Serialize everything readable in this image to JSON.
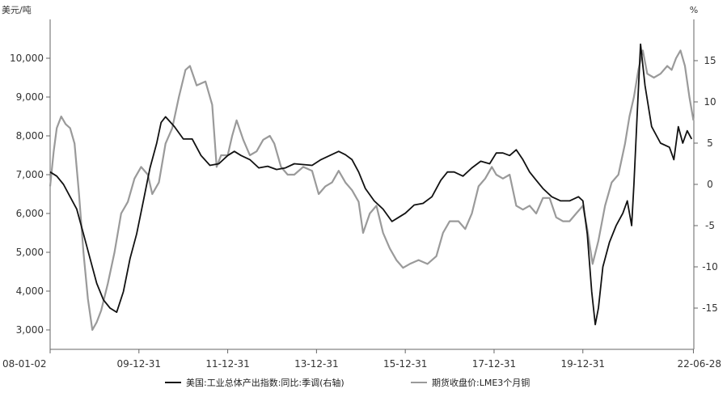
{
  "chart_data": {
    "type": "line",
    "left_axis_unit": "美元/吨",
    "right_axis_unit": "%",
    "x_tick_labels": [
      "08-01-02",
      "09-12-31",
      "11-12-31",
      "13-12-31",
      "15-12-31",
      "17-12-31",
      "19-12-31",
      "22-06-28"
    ],
    "left_axis": {
      "ylim": [
        2500,
        11000
      ],
      "ticks": [
        "3,000",
        "4,000",
        "5,000",
        "6,000",
        "7,000",
        "8,000",
        "9,000",
        "10,000"
      ]
    },
    "right_axis": {
      "ylim": [
        -20,
        20
      ],
      "ticks": [
        "-15",
        "-10",
        "-5",
        "0",
        "5",
        "10",
        "15"
      ]
    },
    "grid": false,
    "legend_position": "bottom",
    "series": [
      {
        "name": "美国:工业总体产出指数:同比:季调(右轴)",
        "axis": "right",
        "color": "#111111",
        "points": [
          [
            2008.0,
            1.5
          ],
          [
            2008.15,
            1.0
          ],
          [
            2008.3,
            0.0
          ],
          [
            2008.45,
            -1.5
          ],
          [
            2008.6,
            -3.0
          ],
          [
            2008.75,
            -6.0
          ],
          [
            2008.9,
            -9.0
          ],
          [
            2009.05,
            -12.0
          ],
          [
            2009.2,
            -14.0
          ],
          [
            2009.35,
            -15.0
          ],
          [
            2009.5,
            -15.5
          ],
          [
            2009.65,
            -13.0
          ],
          [
            2009.8,
            -9.0
          ],
          [
            2009.95,
            -6.0
          ],
          [
            2010.1,
            -2.0
          ],
          [
            2010.25,
            2.0
          ],
          [
            2010.4,
            5.0
          ],
          [
            2010.5,
            7.5
          ],
          [
            2010.6,
            8.2
          ],
          [
            2010.8,
            7.0
          ],
          [
            2011.0,
            5.5
          ],
          [
            2011.2,
            5.5
          ],
          [
            2011.4,
            3.5
          ],
          [
            2011.6,
            2.3
          ],
          [
            2011.8,
            2.5
          ],
          [
            2012.0,
            3.5
          ],
          [
            2012.15,
            4.0
          ],
          [
            2012.3,
            3.5
          ],
          [
            2012.5,
            3.0
          ],
          [
            2012.7,
            2.0
          ],
          [
            2012.9,
            2.2
          ],
          [
            2013.1,
            1.8
          ],
          [
            2013.3,
            2.0
          ],
          [
            2013.5,
            2.5
          ],
          [
            2013.7,
            2.4
          ],
          [
            2013.9,
            2.3
          ],
          [
            2014.1,
            3.0
          ],
          [
            2014.3,
            3.5
          ],
          [
            2014.5,
            4.0
          ],
          [
            2014.65,
            3.6
          ],
          [
            2014.8,
            3.0
          ],
          [
            2014.95,
            1.5
          ],
          [
            2015.1,
            -0.5
          ],
          [
            2015.3,
            -2.0
          ],
          [
            2015.5,
            -3.0
          ],
          [
            2015.7,
            -4.5
          ],
          [
            2015.85,
            -4.0
          ],
          [
            2016.0,
            -3.5
          ],
          [
            2016.2,
            -2.5
          ],
          [
            2016.4,
            -2.3
          ],
          [
            2016.6,
            -1.5
          ],
          [
            2016.8,
            0.5
          ],
          [
            2016.95,
            1.5
          ],
          [
            2017.1,
            1.5
          ],
          [
            2017.3,
            1.0
          ],
          [
            2017.5,
            2.0
          ],
          [
            2017.7,
            2.8
          ],
          [
            2017.9,
            2.5
          ],
          [
            2018.05,
            3.8
          ],
          [
            2018.2,
            3.8
          ],
          [
            2018.35,
            3.5
          ],
          [
            2018.5,
            4.2
          ],
          [
            2018.65,
            3.0
          ],
          [
            2018.8,
            1.5
          ],
          [
            2018.95,
            0.5
          ],
          [
            2019.1,
            -0.5
          ],
          [
            2019.3,
            -1.5
          ],
          [
            2019.5,
            -2.0
          ],
          [
            2019.7,
            -2.0
          ],
          [
            2019.9,
            -1.5
          ],
          [
            2020.0,
            -2.0
          ],
          [
            2020.1,
            -6.0
          ],
          [
            2020.2,
            -13.0
          ],
          [
            2020.28,
            -17.0
          ],
          [
            2020.35,
            -15.0
          ],
          [
            2020.45,
            -10.0
          ],
          [
            2020.6,
            -7.0
          ],
          [
            2020.75,
            -5.0
          ],
          [
            2020.9,
            -3.5
          ],
          [
            2021.0,
            -2.0
          ],
          [
            2021.1,
            -5.0
          ],
          [
            2021.15,
            0.0
          ],
          [
            2021.22,
            8.0
          ],
          [
            2021.3,
            17.0
          ],
          [
            2021.4,
            12.0
          ],
          [
            2021.55,
            7.0
          ],
          [
            2021.75,
            5.0
          ],
          [
            2021.95,
            4.5
          ],
          [
            2022.05,
            3.0
          ],
          [
            2022.15,
            7.0
          ],
          [
            2022.25,
            5.0
          ],
          [
            2022.35,
            6.5
          ],
          [
            2022.45,
            5.5
          ]
        ]
      },
      {
        "name": "期货收盘价:LME3个月铜",
        "axis": "left",
        "color": "#9a9a9a",
        "points": [
          [
            2008.0,
            6700
          ],
          [
            2008.08,
            7600
          ],
          [
            2008.15,
            8200
          ],
          [
            2008.25,
            8500
          ],
          [
            2008.35,
            8300
          ],
          [
            2008.45,
            8200
          ],
          [
            2008.55,
            7800
          ],
          [
            2008.65,
            6500
          ],
          [
            2008.75,
            5000
          ],
          [
            2008.85,
            3800
          ],
          [
            2008.95,
            3000
          ],
          [
            2009.05,
            3200
          ],
          [
            2009.15,
            3500
          ],
          [
            2009.3,
            4200
          ],
          [
            2009.45,
            5000
          ],
          [
            2009.6,
            6000
          ],
          [
            2009.75,
            6300
          ],
          [
            2009.9,
            6900
          ],
          [
            2010.05,
            7200
          ],
          [
            2010.2,
            7000
          ],
          [
            2010.3,
            6500
          ],
          [
            2010.45,
            6800
          ],
          [
            2010.6,
            7800
          ],
          [
            2010.75,
            8200
          ],
          [
            2010.9,
            9000
          ],
          [
            2011.05,
            9700
          ],
          [
            2011.15,
            9800
          ],
          [
            2011.3,
            9300
          ],
          [
            2011.5,
            9400
          ],
          [
            2011.65,
            8800
          ],
          [
            2011.75,
            7200
          ],
          [
            2011.85,
            7500
          ],
          [
            2012.0,
            7500
          ],
          [
            2012.1,
            8000
          ],
          [
            2012.2,
            8400
          ],
          [
            2012.35,
            7900
          ],
          [
            2012.5,
            7500
          ],
          [
            2012.65,
            7600
          ],
          [
            2012.8,
            7900
          ],
          [
            2012.95,
            8000
          ],
          [
            2013.05,
            7800
          ],
          [
            2013.2,
            7200
          ],
          [
            2013.35,
            7000
          ],
          [
            2013.5,
            7000
          ],
          [
            2013.7,
            7200
          ],
          [
            2013.9,
            7100
          ],
          [
            2014.05,
            6500
          ],
          [
            2014.2,
            6700
          ],
          [
            2014.35,
            6800
          ],
          [
            2014.5,
            7100
          ],
          [
            2014.65,
            6800
          ],
          [
            2014.8,
            6600
          ],
          [
            2014.95,
            6300
          ],
          [
            2015.05,
            5500
          ],
          [
            2015.2,
            6000
          ],
          [
            2015.35,
            6200
          ],
          [
            2015.5,
            5500
          ],
          [
            2015.65,
            5100
          ],
          [
            2015.8,
            4800
          ],
          [
            2015.95,
            4600
          ],
          [
            2016.1,
            4700
          ],
          [
            2016.3,
            4800
          ],
          [
            2016.5,
            4700
          ],
          [
            2016.7,
            4900
          ],
          [
            2016.85,
            5500
          ],
          [
            2017.0,
            5800
          ],
          [
            2017.2,
            5800
          ],
          [
            2017.35,
            5600
          ],
          [
            2017.5,
            6000
          ],
          [
            2017.65,
            6700
          ],
          [
            2017.8,
            6900
          ],
          [
            2017.95,
            7200
          ],
          [
            2018.05,
            7000
          ],
          [
            2018.2,
            6900
          ],
          [
            2018.35,
            7000
          ],
          [
            2018.5,
            6200
          ],
          [
            2018.65,
            6100
          ],
          [
            2018.8,
            6200
          ],
          [
            2018.95,
            6000
          ],
          [
            2019.1,
            6400
          ],
          [
            2019.25,
            6400
          ],
          [
            2019.4,
            5900
          ],
          [
            2019.55,
            5800
          ],
          [
            2019.7,
            5800
          ],
          [
            2019.85,
            6000
          ],
          [
            2020.0,
            6200
          ],
          [
            2020.1,
            5600
          ],
          [
            2020.22,
            4700
          ],
          [
            2020.35,
            5300
          ],
          [
            2020.5,
            6200
          ],
          [
            2020.65,
            6800
          ],
          [
            2020.8,
            7000
          ],
          [
            2020.95,
            7800
          ],
          [
            2021.05,
            8500
          ],
          [
            2021.15,
            9000
          ],
          [
            2021.25,
            9700
          ],
          [
            2021.35,
            10200
          ],
          [
            2021.45,
            9600
          ],
          [
            2021.6,
            9500
          ],
          [
            2021.75,
            9600
          ],
          [
            2021.9,
            9800
          ],
          [
            2022.0,
            9700
          ],
          [
            2022.1,
            10000
          ],
          [
            2022.2,
            10200
          ],
          [
            2022.3,
            9800
          ],
          [
            2022.4,
            9000
          ],
          [
            2022.49,
            8400
          ]
        ]
      }
    ]
  }
}
